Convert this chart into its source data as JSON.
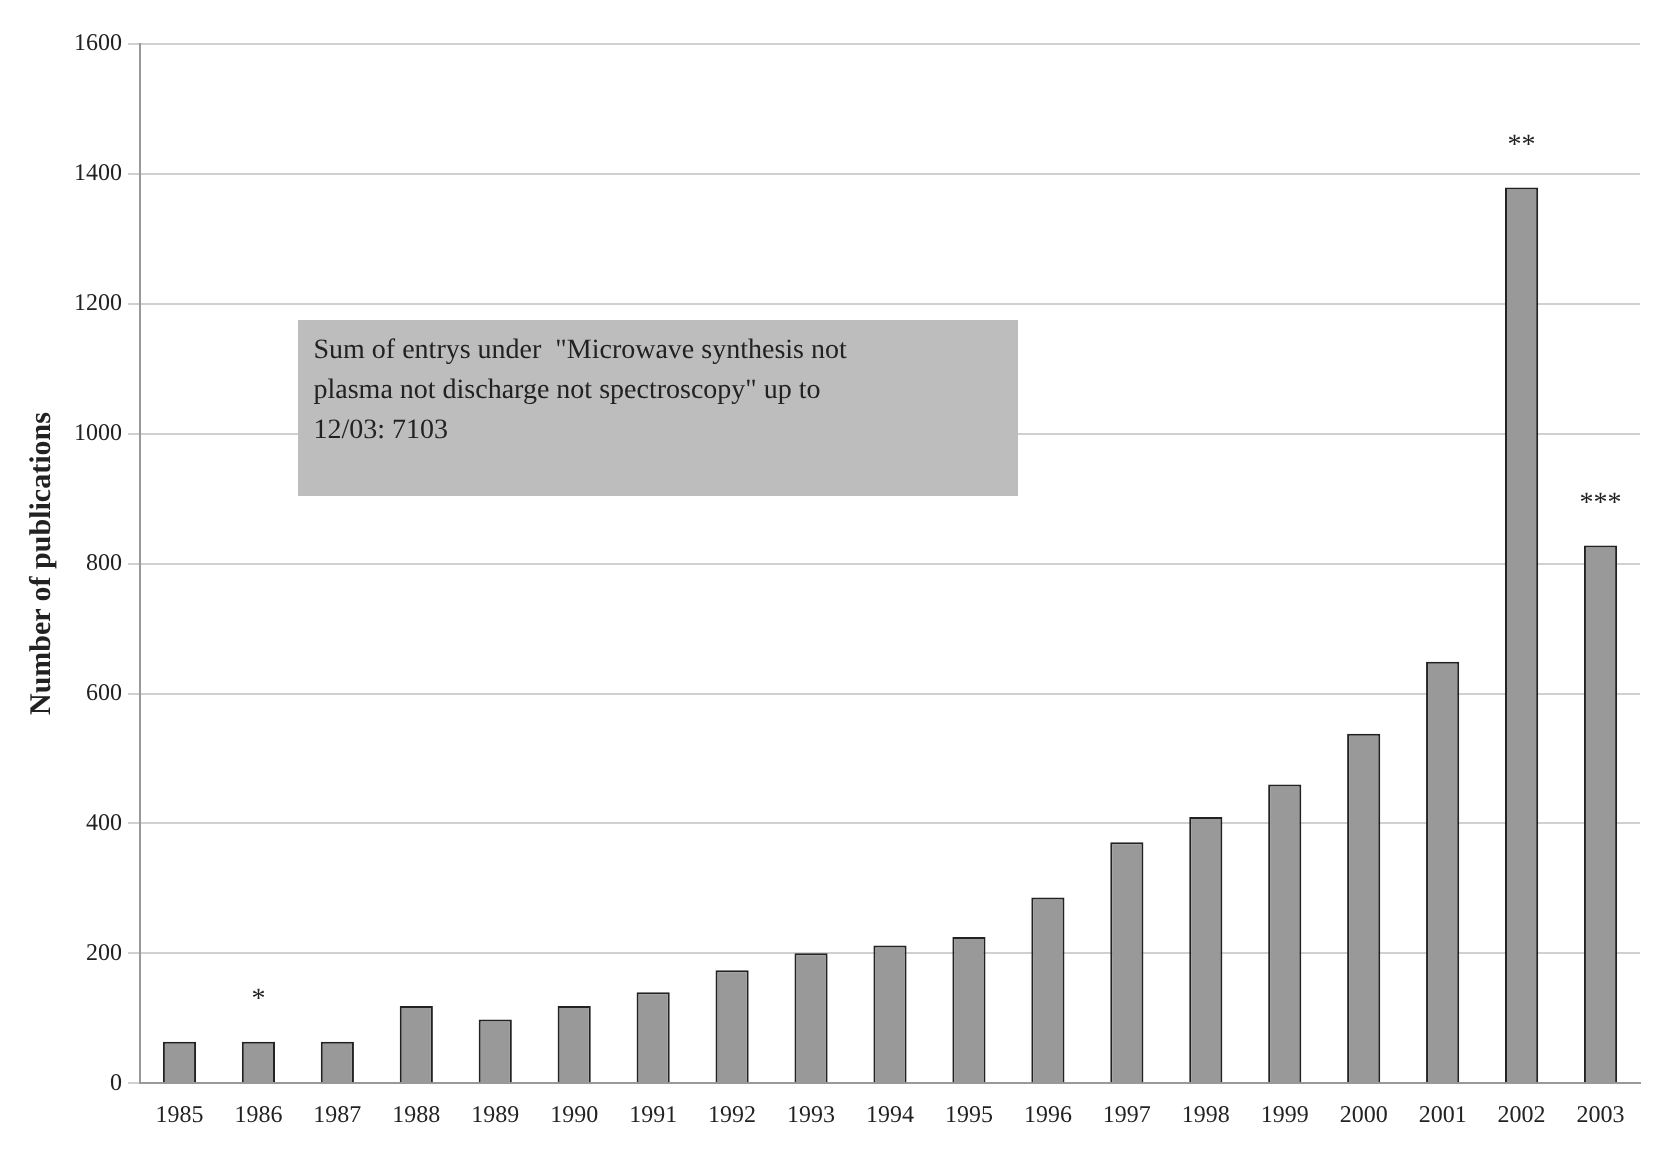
{
  "chart_data": {
    "type": "bar",
    "ylabel": "Number of publications",
    "categories": [
      "1985",
      "1986",
      "1987",
      "1988",
      "1989",
      "1990",
      "1991",
      "1992",
      "1993",
      "1994",
      "1995",
      "1996",
      "1997",
      "1998",
      "1999",
      "2000",
      "2001",
      "2002",
      "2003"
    ],
    "values": [
      64,
      64,
      64,
      119,
      98,
      119,
      140,
      174,
      200,
      212,
      225,
      286,
      371,
      410,
      460,
      538,
      649,
      1379,
      828
    ],
    "color": "#999999",
    "ylim": [
      0,
      1600
    ],
    "yticks": [
      0,
      200,
      400,
      600,
      800,
      1000,
      1200,
      1400,
      1600
    ],
    "grid": "y",
    "legend": false,
    "annotations": [
      "Sum of entrys under  \"Microwave synthesis not plasma not discharge not spectroscopy\" up to 12/03: 7103",
      {
        "text": "*",
        "x": "1986",
        "y": 64
      },
      {
        "text": "**",
        "x": "2002",
        "y": 1379
      },
      {
        "text": "***",
        "x": "2003",
        "y": 828
      }
    ]
  }
}
